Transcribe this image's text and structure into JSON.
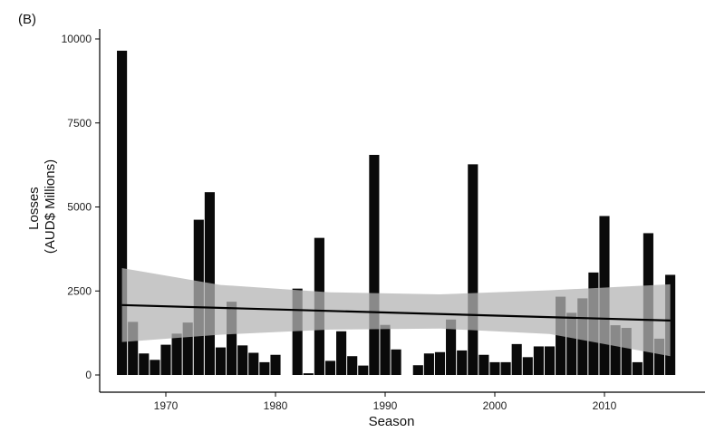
{
  "panel_label": "(B)",
  "chart_data": {
    "type": "bar",
    "title": "",
    "xlabel": "Season",
    "ylabel_lines": [
      "Losses",
      "(AUD$ Millions)"
    ],
    "xlim": [
      1964,
      2018
    ],
    "ylim": [
      0,
      10500
    ],
    "xticks": [
      1970,
      1980,
      1990,
      2000,
      2010
    ],
    "yticks": [
      0,
      2500,
      5000,
      7500,
      10000
    ],
    "grid": false,
    "legend": "none",
    "colors": {
      "bars": "#0a0a0a",
      "ribbon": "#b4b4b4",
      "trend": "#000000",
      "axis": "#000000"
    },
    "series": [
      {
        "x": [
          1966,
          1967,
          1968,
          1969,
          1970,
          1971,
          1972,
          1973,
          1974,
          1975,
          1976,
          1977,
          1978,
          1979,
          1980,
          1982,
          1983,
          1984,
          1985,
          1986,
          1987,
          1988,
          1989,
          1990,
          1991,
          1993,
          1994,
          1995,
          1996,
          1997,
          1998,
          1999,
          2000,
          2001,
          2002,
          2003,
          2004,
          2005,
          2006,
          2007,
          2008,
          2009,
          2010,
          2011,
          2012,
          2013,
          2014,
          2015,
          2016
        ],
        "values": [
          9650,
          1580,
          640,
          450,
          900,
          1230,
          1560,
          4620,
          5440,
          820,
          2180,
          880,
          660,
          380,
          600,
          2570,
          50,
          4080,
          420,
          1300,
          560,
          280,
          6550,
          1490,
          760,
          290,
          640,
          680,
          1650,
          730,
          6270,
          600,
          380,
          380,
          920,
          530,
          850,
          850,
          2330,
          1850,
          2280,
          3050,
          4730,
          1480,
          1400,
          380,
          4220,
          1080,
          2980
        ]
      }
    ],
    "trend": {
      "type": "linear",
      "x": [
        1966,
        2016
      ],
      "y": [
        2080,
        1620
      ]
    },
    "confidence_band": {
      "x": [
        1966,
        1975,
        1985,
        1995,
        2005,
        2016
      ],
      "lower": [
        980,
        1200,
        1350,
        1380,
        1220,
        560
      ],
      "upper": [
        3180,
        2680,
        2460,
        2400,
        2520,
        2700
      ]
    }
  }
}
